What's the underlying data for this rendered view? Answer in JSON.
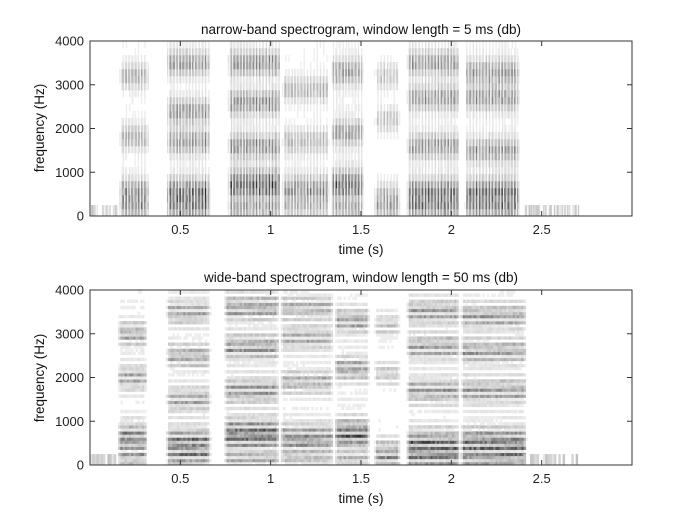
{
  "chart_data": [
    {
      "type": "heatmap",
      "title": "narrow-band spectrogram, window length = 5 ms (db)",
      "xlabel": "time (s)",
      "ylabel": "frequency (Hz)",
      "xlim": [
        0,
        3
      ],
      "ylim": [
        0,
        4000
      ],
      "xticks": [
        "0.5",
        "1",
        "1.5",
        "2",
        "2.5"
      ],
      "xtick_values": [
        0.5,
        1,
        1.5,
        2,
        2.5
      ],
      "yticks": [
        "0",
        "1000",
        "2000",
        "3000",
        "4000"
      ],
      "ytick_values": [
        0,
        1000,
        2000,
        3000,
        4000
      ],
      "colormap": "gray-inverted",
      "grid": false,
      "segments": [
        {
          "t0": 0.16,
          "t1": 0.33,
          "level": 0.55,
          "formants": [
            500,
            1800,
            3200
          ]
        },
        {
          "t0": 0.42,
          "t1": 0.67,
          "level": 0.7,
          "formants": [
            500,
            1700,
            2400,
            3500
          ]
        },
        {
          "t0": 0.76,
          "t1": 1.06,
          "level": 0.75,
          "formants": [
            700,
            1600,
            2600,
            3500
          ]
        },
        {
          "t0": 1.06,
          "t1": 1.33,
          "level": 0.5,
          "formants": [
            600,
            1700,
            2900
          ]
        },
        {
          "t0": 1.33,
          "t1": 1.52,
          "level": 0.7,
          "formants": [
            700,
            1900,
            3300
          ]
        },
        {
          "t0": 1.57,
          "t1": 1.72,
          "level": 0.4,
          "formants": [
            400,
            2200,
            3200
          ]
        },
        {
          "t0": 1.75,
          "t1": 2.05,
          "level": 0.7,
          "formants": [
            500,
            1600,
            2700,
            3500
          ]
        },
        {
          "t0": 2.07,
          "t1": 2.38,
          "level": 0.7,
          "formants": [
            500,
            1500,
            2700,
            3300
          ]
        }
      ]
    },
    {
      "type": "heatmap",
      "title": "wide-band spectrogram, window length = 50 ms (db)",
      "xlabel": "time (s)",
      "ylabel": "frequency (Hz)",
      "xlim": [
        0,
        3
      ],
      "ylim": [
        0,
        4000
      ],
      "xticks": [
        "0.5",
        "1",
        "1.5",
        "2",
        "2.5"
      ],
      "xtick_values": [
        0.5,
        1,
        1.5,
        2,
        2.5
      ],
      "yticks": [
        "0",
        "1000",
        "2000",
        "3000",
        "4000"
      ],
      "ytick_values": [
        0,
        1000,
        2000,
        3000,
        4000
      ],
      "colormap": "gray-inverted",
      "grid": false,
      "segments": [
        {
          "t0": 0.15,
          "t1": 0.32,
          "level": 0.6,
          "formants": [
            600,
            2000,
            3000
          ]
        },
        {
          "t0": 0.42,
          "t1": 0.67,
          "level": 0.6,
          "formants": [
            500,
            1500,
            2500,
            3500
          ]
        },
        {
          "t0": 0.74,
          "t1": 1.05,
          "level": 0.7,
          "formants": [
            700,
            1700,
            2700,
            3600
          ]
        },
        {
          "t0": 1.05,
          "t1": 1.35,
          "level": 0.55,
          "formants": [
            600,
            1900,
            2900,
            3600
          ]
        },
        {
          "t0": 1.35,
          "t1": 1.55,
          "level": 0.65,
          "formants": [
            700,
            2200,
            3300
          ]
        },
        {
          "t0": 1.57,
          "t1": 1.72,
          "level": 0.4,
          "formants": [
            300,
            2100,
            3200
          ]
        },
        {
          "t0": 1.75,
          "t1": 2.05,
          "level": 0.65,
          "formants": [
            450,
            1700,
            2700,
            3500
          ]
        },
        {
          "t0": 2.05,
          "t1": 2.42,
          "level": 0.65,
          "formants": [
            500,
            1700,
            2600,
            3400
          ]
        }
      ]
    }
  ]
}
